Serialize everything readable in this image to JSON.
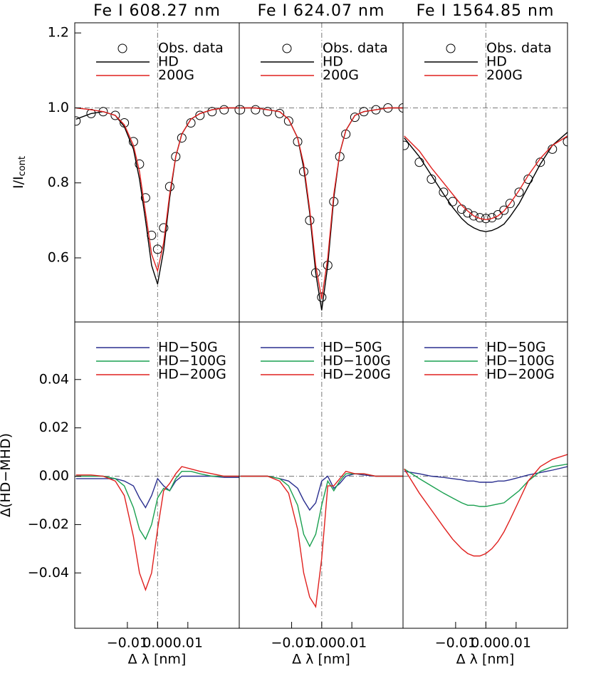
{
  "chart_data": [
    {
      "type": "line",
      "title": "Fe I 608.27 nm",
      "ylabel": "I/I",
      "ylabel_sub": "cont",
      "x": [
        -0.027,
        -0.022,
        -0.018,
        -0.014,
        -0.011,
        -0.008,
        -0.006,
        -0.004,
        -0.002,
        0,
        0.002,
        0.004,
        0.006,
        0.008,
        0.011,
        0.014,
        0.018,
        0.022,
        0.027
      ],
      "xlim": [
        -0.0274,
        0.027
      ],
      "ylim": [
        0.429,
        1.227
      ],
      "yticks": [
        0.6,
        0.8,
        {
          "value": 1,
          "label": "1.0"
        },
        1.2
      ],
      "ref_lines": {
        "x": 0,
        "y": 1
      },
      "series": [
        {
          "name": "Obs. data",
          "color": "#000000",
          "marker": "circle",
          "values": [
            0.965,
            0.985,
            0.99,
            0.98,
            0.96,
            0.91,
            0.85,
            0.76,
            0.66,
            0.623,
            0.68,
            0.79,
            0.87,
            0.92,
            0.96,
            0.98,
            0.99,
            0.995,
            0.995
          ]
        },
        {
          "name": "HD",
          "color": "#000000",
          "values": [
            0.97,
            0.985,
            0.99,
            0.98,
            0.95,
            0.89,
            0.81,
            0.7,
            0.58,
            0.53,
            0.62,
            0.76,
            0.87,
            0.93,
            0.97,
            0.985,
            0.995,
            1.0,
            1.0
          ]
        },
        {
          "name": "200G",
          "color": "#e0201e",
          "values": [
            1.0,
            0.995,
            0.99,
            0.98,
            0.955,
            0.9,
            0.83,
            0.72,
            0.61,
            0.565,
            0.64,
            0.77,
            0.87,
            0.93,
            0.97,
            0.985,
            0.995,
            1.0,
            1.0
          ]
        }
      ]
    },
    {
      "type": "line",
      "title": "Fe I 624.07 nm",
      "x": [
        -0.027,
        -0.022,
        -0.018,
        -0.014,
        -0.011,
        -0.008,
        -0.006,
        -0.004,
        -0.002,
        0,
        0.002,
        0.004,
        0.006,
        0.008,
        0.011,
        0.014,
        0.018,
        0.022,
        0.027
      ],
      "xlim": [
        -0.0274,
        0.027
      ],
      "ylim": [
        0.429,
        1.227
      ],
      "ref_lines": {
        "x": 0,
        "y": 1
      },
      "series": [
        {
          "name": "Obs. data",
          "color": "#000000",
          "marker": "circle",
          "values": [
            0.995,
            0.995,
            0.99,
            0.985,
            0.965,
            0.91,
            0.83,
            0.7,
            0.56,
            0.495,
            0.58,
            0.75,
            0.87,
            0.93,
            0.975,
            0.99,
            0.995,
            1.0,
            1.0
          ]
        },
        {
          "name": "HD",
          "color": "#000000",
          "values": [
            1.0,
            1.0,
            0.995,
            0.99,
            0.97,
            0.92,
            0.84,
            0.72,
            0.56,
            0.46,
            0.58,
            0.76,
            0.88,
            0.94,
            0.98,
            0.99,
            0.995,
            1.0,
            1.0
          ]
        },
        {
          "name": "200G",
          "color": "#e0201e",
          "values": [
            1.0,
            1.0,
            0.995,
            0.99,
            0.97,
            0.92,
            0.85,
            0.73,
            0.58,
            0.49,
            0.6,
            0.77,
            0.88,
            0.94,
            0.98,
            0.99,
            0.995,
            1.0,
            1.0
          ]
        }
      ]
    },
    {
      "type": "line",
      "title": "Fe I 1564.85 nm",
      "x": [
        -0.027,
        -0.022,
        -0.018,
        -0.014,
        -0.011,
        -0.008,
        -0.006,
        -0.004,
        -0.002,
        0,
        0.002,
        0.004,
        0.006,
        0.008,
        0.011,
        0.014,
        0.018,
        0.022,
        0.027
      ],
      "xlim": [
        -0.0274,
        0.027
      ],
      "ylim": [
        0.429,
        1.227
      ],
      "ref_lines": {
        "x": 0,
        "y": 1
      },
      "series": [
        {
          "name": "Obs. data",
          "color": "#000000",
          "marker": "circle",
          "values": [
            0.9,
            0.855,
            0.81,
            0.775,
            0.75,
            0.73,
            0.72,
            0.712,
            0.707,
            0.705,
            0.707,
            0.715,
            0.727,
            0.745,
            0.775,
            0.81,
            0.855,
            0.89,
            0.91
          ]
        },
        {
          "name": "HD",
          "color": "#000000",
          "values": [
            0.92,
            0.87,
            0.82,
            0.77,
            0.735,
            0.705,
            0.69,
            0.68,
            0.673,
            0.67,
            0.673,
            0.68,
            0.69,
            0.71,
            0.745,
            0.79,
            0.85,
            0.9,
            0.935
          ]
        },
        {
          "name": "200G",
          "color": "#e0201e",
          "values": [
            0.925,
            0.885,
            0.84,
            0.8,
            0.77,
            0.74,
            0.725,
            0.712,
            0.705,
            0.702,
            0.705,
            0.712,
            0.725,
            0.745,
            0.78,
            0.82,
            0.865,
            0.9,
            0.925
          ]
        }
      ]
    },
    {
      "type": "line",
      "ylabel": "Δ(HD−MHD)",
      "xlabel": "Δ λ [nm]",
      "x": [
        -0.027,
        -0.022,
        -0.018,
        -0.014,
        -0.011,
        -0.008,
        -0.006,
        -0.004,
        -0.002,
        0,
        0.002,
        0.004,
        0.006,
        0.008,
        0.011,
        0.014,
        0.018,
        0.022,
        0.027
      ],
      "xlim": [
        -0.0274,
        0.027
      ],
      "ylim": [
        -0.0629,
        0.0638
      ],
      "xticks": [
        {
          "value": -0.01,
          "label": "−0.01"
        },
        {
          "value": 0,
          "label": "0.00"
        },
        0.01
      ],
      "yticks": [
        {
          "value": -0.04,
          "label": "−0.04"
        },
        {
          "value": -0.02,
          "label": "−0.02"
        },
        {
          "value": 0,
          "label": "0.00"
        },
        0.02,
        0.04
      ],
      "ref_lines": {
        "x": 0,
        "y": 0
      },
      "series": [
        {
          "name": "HD−50G",
          "color": "#2a2f8f",
          "values": [
            -0.001,
            -0.001,
            -0.001,
            -0.001,
            -0.002,
            -0.004,
            -0.009,
            -0.013,
            -0.008,
            -0.001,
            -0.004,
            -0.006,
            -0.002,
            0.0,
            0.0,
            0.0,
            0.0,
            -0.0005,
            -0.0005
          ]
        },
        {
          "name": "HD−100G",
          "color": "#1aa050",
          "values": [
            0.0,
            0.0,
            0.0,
            -0.001,
            -0.004,
            -0.013,
            -0.022,
            -0.026,
            -0.02,
            -0.009,
            -0.005,
            -0.006,
            -0.001,
            0.002,
            0.002,
            0.001,
            0.0,
            0.0,
            0.0
          ]
        },
        {
          "name": "HD−200G",
          "color": "#e0201e",
          "values": [
            0.0005,
            0.0005,
            0.0,
            -0.002,
            -0.008,
            -0.025,
            -0.04,
            -0.047,
            -0.04,
            -0.022,
            -0.006,
            -0.003,
            0.001,
            0.004,
            0.003,
            0.002,
            0.001,
            0.0,
            0.0
          ]
        }
      ]
    },
    {
      "type": "line",
      "xlabel": "Δ λ [nm]",
      "x": [
        -0.027,
        -0.022,
        -0.018,
        -0.014,
        -0.011,
        -0.008,
        -0.006,
        -0.004,
        -0.002,
        0,
        0.002,
        0.004,
        0.006,
        0.008,
        0.011,
        0.014,
        0.018,
        0.022,
        0.027
      ],
      "xlim": [
        -0.0274,
        0.027
      ],
      "ylim": [
        -0.0629,
        0.0638
      ],
      "xticks": [
        {
          "value": -0.01,
          "label": "−0.01"
        },
        {
          "value": 0,
          "label": "0.00"
        },
        0.01
      ],
      "ref_lines": {
        "x": 0,
        "y": 0
      },
      "series": [
        {
          "name": "HD−50G",
          "color": "#2a2f8f",
          "values": [
            0.0,
            0.0,
            0.0,
            -0.001,
            -0.002,
            -0.005,
            -0.01,
            -0.014,
            -0.011,
            -0.002,
            0.0,
            -0.005,
            -0.003,
            0.0,
            0.001,
            0.0005,
            0.0,
            0.0,
            0.0
          ]
        },
        {
          "name": "HD−100G",
          "color": "#1aa050",
          "values": [
            0.0,
            0.0,
            0.0,
            -0.001,
            -0.004,
            -0.012,
            -0.024,
            -0.029,
            -0.024,
            -0.012,
            -0.002,
            -0.006,
            -0.002,
            0.001,
            0.001,
            0.001,
            0.0,
            0.0,
            0.0
          ]
        },
        {
          "name": "HD−200G",
          "color": "#e0201e",
          "values": [
            0.0,
            0.0,
            0.0,
            -0.002,
            -0.007,
            -0.022,
            -0.04,
            -0.05,
            -0.054,
            -0.034,
            -0.004,
            -0.004,
            -0.001,
            0.002,
            0.001,
            0.001,
            0.0,
            0.0,
            0.0
          ]
        }
      ]
    },
    {
      "type": "line",
      "xlabel": "Δ λ [nm]",
      "x": [
        -0.027,
        -0.022,
        -0.018,
        -0.014,
        -0.011,
        -0.008,
        -0.006,
        -0.004,
        -0.002,
        0,
        0.002,
        0.004,
        0.006,
        0.008,
        0.011,
        0.014,
        0.018,
        0.022,
        0.027
      ],
      "xlim": [
        -0.0274,
        0.027
      ],
      "ylim": [
        -0.0629,
        0.0638
      ],
      "xticks": [
        {
          "value": -0.01,
          "label": "−0.01"
        },
        {
          "value": 0,
          "label": "0.00"
        },
        0.01
      ],
      "ref_lines": {
        "x": 0,
        "y": 0
      },
      "series": [
        {
          "name": "HD−50G",
          "color": "#2a2f8f",
          "values": [
            0.002,
            0.001,
            0.0,
            -0.0005,
            -0.001,
            -0.0015,
            -0.002,
            -0.002,
            -0.0025,
            -0.0025,
            -0.0025,
            -0.002,
            -0.002,
            -0.0015,
            -0.0005,
            0.0005,
            0.0015,
            0.0025,
            0.004
          ]
        },
        {
          "name": "HD−100G",
          "color": "#1aa050",
          "values": [
            0.003,
            -0.001,
            -0.004,
            -0.007,
            -0.009,
            -0.011,
            -0.012,
            -0.012,
            -0.0125,
            -0.0125,
            -0.012,
            -0.0115,
            -0.011,
            -0.009,
            -0.006,
            -0.002,
            0.002,
            0.004,
            0.005
          ]
        },
        {
          "name": "HD−200G",
          "color": "#e0201e",
          "values": [
            0.003,
            -0.007,
            -0.014,
            -0.021,
            -0.026,
            -0.03,
            -0.032,
            -0.033,
            -0.033,
            -0.032,
            -0.03,
            -0.027,
            -0.023,
            -0.018,
            -0.01,
            -0.002,
            0.004,
            0.007,
            0.009
          ]
        }
      ]
    }
  ]
}
